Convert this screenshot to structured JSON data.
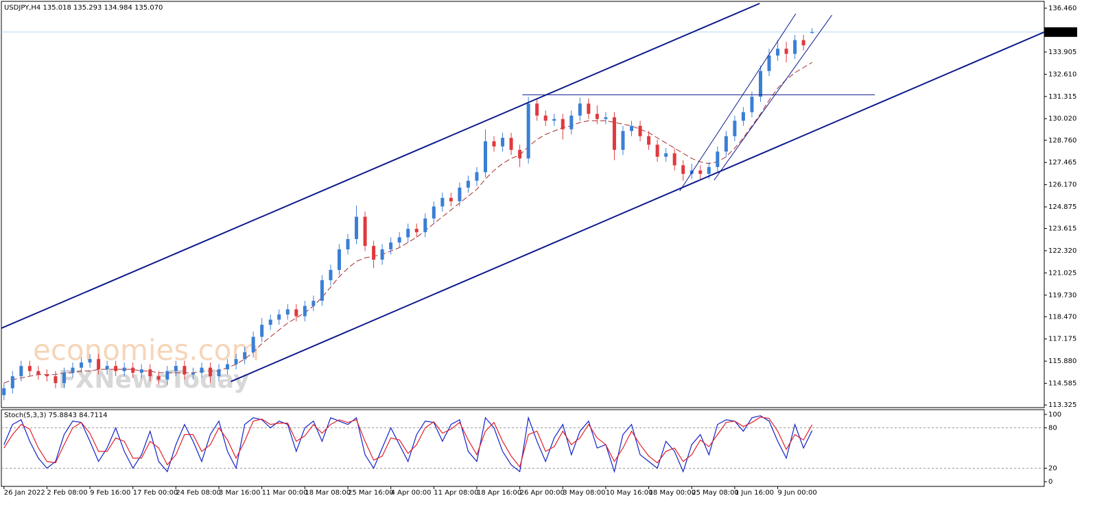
{
  "chart_data": [
    {
      "type": "candlestick",
      "title": "USDJPY,H4  135.018 135.293 134.984 135.070",
      "watermarks": [
        "economies.com",
        "FXNewsToday"
      ],
      "xlim": [
        -0.3,
        121
      ],
      "ylim": [
        113.17,
        136.86
      ],
      "yticks": [
        {
          "value": 136.46,
          "label": "136.460"
        },
        133.905,
        {
          "value": 132.61,
          "label": "132.610"
        },
        131.315,
        {
          "value": 130.02,
          "label": "130.020"
        },
        {
          "value": 128.76,
          "label": "128.760"
        },
        127.465,
        {
          "value": 126.17,
          "label": "126.170"
        },
        124.875,
        123.615,
        {
          "value": 122.32,
          "label": "122.320"
        },
        121.025,
        {
          "value": 119.73,
          "label": "119.730"
        },
        {
          "value": 118.47,
          "label": "118.470"
        },
        117.175,
        {
          "value": 115.88,
          "label": "115.880"
        },
        114.585,
        113.325
      ],
      "current_price": {
        "value": 135.07,
        "label": "135.070"
      },
      "up_color": "#3a7fd5",
      "down_color": "#e0393e",
      "open": [
        113.9,
        114.3,
        115.0,
        115.6,
        115.3,
        115.1,
        115.0,
        114.6,
        115.2,
        115.5,
        115.8,
        116.0,
        115.4,
        115.6,
        115.3,
        115.5,
        115.2,
        115.4,
        115.0,
        114.8,
        115.3,
        115.6,
        115.1,
        115.2,
        115.5,
        115.0,
        115.4,
        115.7,
        116.0,
        116.4,
        117.3,
        118.0,
        118.3,
        118.6,
        118.9,
        118.5,
        119.1,
        119.4,
        120.6,
        121.2,
        122.4,
        123.0,
        124.3,
        122.6,
        121.8,
        122.4,
        122.8,
        123.1,
        123.6,
        123.4,
        124.2,
        124.9,
        125.4,
        125.2,
        126.0,
        126.4,
        126.9,
        128.7,
        128.4,
        128.9,
        128.2,
        127.7,
        130.9,
        130.2,
        129.9,
        130.0,
        129.4,
        130.2,
        130.9,
        130.3,
        130.0,
        130.1,
        128.2,
        129.3,
        129.6,
        129.0,
        128.5,
        127.8,
        128.0,
        127.3,
        126.8,
        127.0,
        126.8,
        127.2,
        128.1,
        129.0,
        129.9,
        130.4,
        131.3,
        132.8,
        133.7,
        134.1,
        133.8,
        134.6,
        135.018
      ],
      "high": [
        114.6,
        115.3,
        115.9,
        115.9,
        115.6,
        115.4,
        115.3,
        115.5,
        115.8,
        116.1,
        116.3,
        116.3,
        115.9,
        115.9,
        115.8,
        115.8,
        115.7,
        115.7,
        115.3,
        115.6,
        115.9,
        115.9,
        115.5,
        115.8,
        115.8,
        115.7,
        116.0,
        116.3,
        116.7,
        117.6,
        118.4,
        118.6,
        118.9,
        119.2,
        119.2,
        119.4,
        119.7,
        120.9,
        121.5,
        122.7,
        123.3,
        124.95,
        124.6,
        122.9,
        122.7,
        123.1,
        123.4,
        123.9,
        123.9,
        124.5,
        125.2,
        125.7,
        125.7,
        126.3,
        126.7,
        127.2,
        129.4,
        129.0,
        129.2,
        129.2,
        128.5,
        131.3,
        131.2,
        130.5,
        130.3,
        130.3,
        130.5,
        131.25,
        131.2,
        130.8,
        130.4,
        130.4,
        129.6,
        129.9,
        129.9,
        129.3,
        128.8,
        128.3,
        128.3,
        127.6,
        127.4,
        127.3,
        127.5,
        128.4,
        129.3,
        130.2,
        130.7,
        131.6,
        133.1,
        134.1,
        134.6,
        134.5,
        134.9,
        134.9,
        135.293
      ],
      "low": [
        113.6,
        114.0,
        114.7,
        115.0,
        114.8,
        114.7,
        114.3,
        114.3,
        114.9,
        115.2,
        115.5,
        115.1,
        115.1,
        115.0,
        115.0,
        114.9,
        114.9,
        114.7,
        114.5,
        114.5,
        115.0,
        114.8,
        114.8,
        114.9,
        114.6,
        114.7,
        115.1,
        115.4,
        115.7,
        116.1,
        117.0,
        117.7,
        118.0,
        118.3,
        118.2,
        118.2,
        118.8,
        119.1,
        120.3,
        120.9,
        122.1,
        122.7,
        122.3,
        121.3,
        121.5,
        122.1,
        122.5,
        122.8,
        123.1,
        123.1,
        123.9,
        124.6,
        124.9,
        124.9,
        125.7,
        126.1,
        126.6,
        128.1,
        128.1,
        127.9,
        127.2,
        127.4,
        129.9,
        129.6,
        129.6,
        128.8,
        129.1,
        129.9,
        130.0,
        129.7,
        129.7,
        127.6,
        127.9,
        129.0,
        128.7,
        128.2,
        127.5,
        127.5,
        127.0,
        126.4,
        126.5,
        126.5,
        126.5,
        126.9,
        127.8,
        128.7,
        129.6,
        130.1,
        131.0,
        132.5,
        133.4,
        133.3,
        133.5,
        134.0,
        134.984
      ],
      "close": [
        114.3,
        115.0,
        115.6,
        115.3,
        115.1,
        115.0,
        114.6,
        115.2,
        115.5,
        115.8,
        116.0,
        115.4,
        115.6,
        115.3,
        115.5,
        115.2,
        115.4,
        115.0,
        114.8,
        115.3,
        115.6,
        115.1,
        115.2,
        115.5,
        115.0,
        115.4,
        115.7,
        116.0,
        116.4,
        117.3,
        118.0,
        118.3,
        118.6,
        118.9,
        118.5,
        119.1,
        119.4,
        120.6,
        121.2,
        122.4,
        123.0,
        124.3,
        122.6,
        121.8,
        122.4,
        122.8,
        123.1,
        123.6,
        123.4,
        124.2,
        124.9,
        125.4,
        125.2,
        126.0,
        126.4,
        126.9,
        128.7,
        128.4,
        128.9,
        128.2,
        127.7,
        130.9,
        130.2,
        129.9,
        130.0,
        129.4,
        130.2,
        130.9,
        130.3,
        130.0,
        130.1,
        128.2,
        129.3,
        129.6,
        129.0,
        128.5,
        127.8,
        128.0,
        127.3,
        126.8,
        127.0,
        126.8,
        127.2,
        128.1,
        129.0,
        129.9,
        130.4,
        131.3,
        132.8,
        133.7,
        134.1,
        133.8,
        134.6,
        134.3,
        135.07
      ],
      "ma": {
        "color": "#a52a2a",
        "values": [
          114.6,
          114.8,
          114.9,
          115.0,
          115.1,
          115.1,
          115.1,
          115.2,
          115.2,
          115.3,
          115.3,
          115.4,
          115.4,
          115.4,
          115.4,
          115.4,
          115.3,
          115.3,
          115.2,
          115.2,
          115.2,
          115.2,
          115.2,
          115.3,
          115.3,
          115.3,
          115.5,
          115.7,
          116.0,
          116.4,
          116.9,
          117.3,
          117.7,
          118.1,
          118.4,
          118.7,
          119.1,
          119.6,
          120.2,
          120.8,
          121.3,
          121.7,
          121.9,
          122.0,
          122.1,
          122.3,
          122.5,
          122.8,
          123.1,
          123.5,
          123.9,
          124.3,
          124.7,
          125.1,
          125.5,
          125.9,
          126.5,
          127.0,
          127.4,
          127.7,
          127.9,
          128.4,
          128.8,
          129.1,
          129.3,
          129.5,
          129.6,
          129.8,
          129.9,
          129.9,
          129.9,
          129.8,
          129.7,
          129.6,
          129.4,
          129.2,
          128.9,
          128.6,
          128.3,
          128.0,
          127.7,
          127.5,
          127.4,
          127.5,
          127.8,
          128.3,
          128.9,
          129.6,
          130.3,
          131.1,
          131.8,
          132.3,
          132.7,
          133.0,
          133.3
        ]
      },
      "trendlines": [
        {
          "color": "#0d1a8c",
          "width": 2,
          "x": [
            -0.3,
            87.9
          ],
          "y": [
            117.8,
            136.74
          ]
        },
        {
          "color": "#0d1a8c",
          "width": 2,
          "x": [
            26.4,
            121
          ],
          "y": [
            114.69,
            135.07
          ]
        },
        {
          "color": "#0d1a8c",
          "width": 1,
          "x": [
            60.3,
            101.3
          ],
          "y": [
            131.41,
            131.41
          ]
        },
        {
          "color": "#0d1a8c",
          "width": 1,
          "x": [
            78.6,
            92.1
          ],
          "y": [
            125.8,
            136.14
          ]
        },
        {
          "color": "#0d1a8c",
          "width": 1,
          "x": [
            82.6,
            96.3
          ],
          "y": [
            126.43,
            136.06
          ]
        }
      ]
    },
    {
      "type": "line",
      "title": "Stoch(5,3,3) 75.8843 84.7114",
      "xlim": [
        -0.3,
        121
      ],
      "ylim": [
        -7,
        107
      ],
      "yticks": [
        0,
        20,
        80,
        100
      ],
      "levels": [
        20,
        80
      ],
      "xticks": [
        {
          "value": 0,
          "label": "26 Jan 2022"
        },
        {
          "value": 5,
          "label": "2 Feb 08:00"
        },
        {
          "value": 10,
          "label": "9 Feb 16:00"
        },
        {
          "value": 15,
          "label": "17 Feb 00:00"
        },
        {
          "value": 20,
          "label": "24 Feb 08:00"
        },
        {
          "value": 25,
          "label": "3 Mar 16:00"
        },
        {
          "value": 30,
          "label": "11 Mar 00:00"
        },
        {
          "value": 35,
          "label": "18 Mar 08:00"
        },
        {
          "value": 40,
          "label": "25 Mar 16:00"
        },
        {
          "value": 45,
          "label": "4 Apr 00:00"
        },
        {
          "value": 50,
          "label": "11 Apr 08:00"
        },
        {
          "value": 55,
          "label": "18 Apr 16:00"
        },
        {
          "value": 60,
          "label": "26 Apr 00:00"
        },
        {
          "value": 65,
          "label": "3 May 08:00"
        },
        {
          "value": 70,
          "label": "10 May 16:00"
        },
        {
          "value": 75,
          "label": "18 May 00:00"
        },
        {
          "value": 80,
          "label": "25 May 08:00"
        },
        {
          "value": 85,
          "label": "1 Jun 16:00"
        },
        {
          "value": 90,
          "label": "9 Jun 00:00"
        }
      ],
      "series": [
        {
          "color": "#1020c8",
          "values": [
            55,
            85,
            92,
            60,
            35,
            20,
            30,
            70,
            90,
            88,
            60,
            30,
            50,
            80,
            45,
            20,
            40,
            75,
            30,
            15,
            55,
            85,
            60,
            30,
            70,
            90,
            45,
            20,
            85,
            95,
            92,
            80,
            90,
            85,
            45,
            80,
            90,
            60,
            95,
            90,
            85,
            95,
            40,
            20,
            50,
            80,
            55,
            30,
            70,
            90,
            88,
            60,
            85,
            92,
            45,
            30,
            95,
            80,
            45,
            25,
            15,
            95,
            60,
            30,
            65,
            85,
            40,
            75,
            90,
            50,
            55,
            15,
            70,
            85,
            40,
            30,
            20,
            60,
            45,
            15,
            55,
            70,
            40,
            85,
            92,
            90,
            75,
            95,
            98,
            90,
            60,
            35,
            85,
            50,
            75.8843
          ]
        },
        {
          "color": "#e0202a",
          "values": [
            50,
            70,
            85,
            78,
            50,
            30,
            28,
            55,
            80,
            88,
            72,
            45,
            45,
            65,
            60,
            35,
            35,
            60,
            50,
            25,
            40,
            70,
            70,
            45,
            55,
            80,
            62,
            35,
            60,
            90,
            93,
            85,
            87,
            87,
            60,
            68,
            85,
            72,
            85,
            92,
            88,
            92,
            60,
            32,
            38,
            65,
            62,
            42,
            55,
            80,
            89,
            72,
            78,
            88,
            62,
            40,
            75,
            88,
            60,
            38,
            22,
            70,
            75,
            45,
            52,
            75,
            55,
            65,
            85,
            65,
            55,
            30,
            50,
            75,
            55,
            38,
            28,
            45,
            50,
            30,
            40,
            62,
            52,
            70,
            88,
            90,
            82,
            88,
            96,
            94,
            75,
            48,
            70,
            62,
            84.7114
          ]
        }
      ]
    }
  ]
}
